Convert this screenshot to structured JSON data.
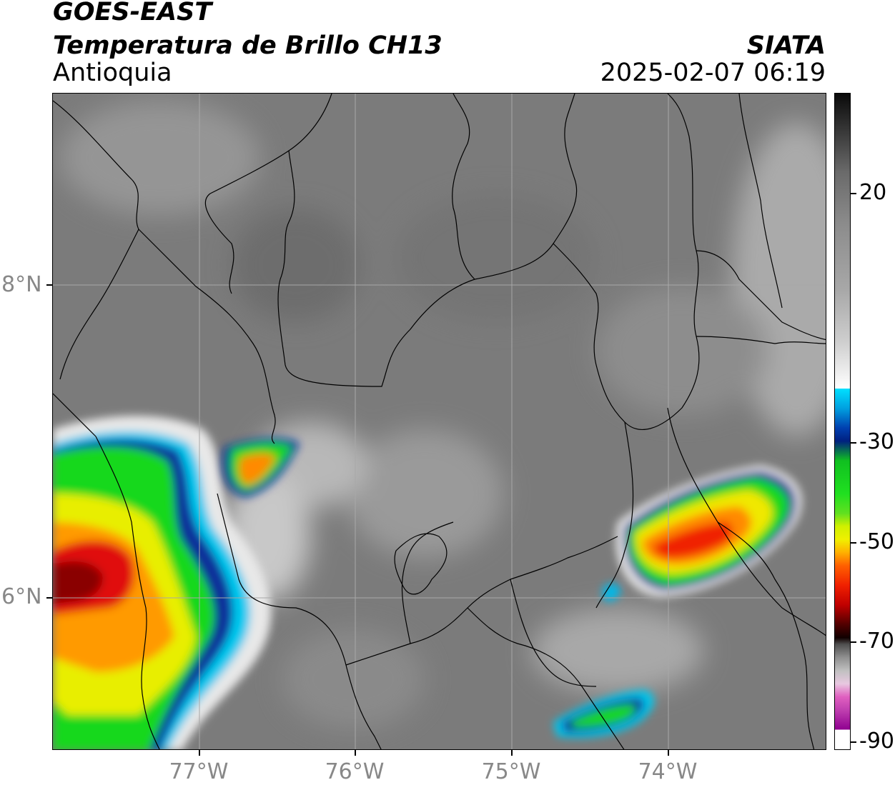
{
  "header": {
    "satellite": "GOES-EAST",
    "product": "Temperatura de Brillo CH13",
    "region": "Antioquia",
    "organization": "SIATA",
    "datetime": "2025-02-07 06:19"
  },
  "map": {
    "latitude_labels": [
      "8°N",
      "6°N"
    ],
    "longitude_labels": [
      "77°W",
      "76°W",
      "75°W",
      "74°W"
    ],
    "background_color": "#808080",
    "gridline_color": "#9a9a9a"
  },
  "colorbar": {
    "labels": [
      "20",
      "-30",
      "-50",
      "-70",
      "-90"
    ],
    "colors": {
      "warm": "#1a1a1a",
      "gray": "#909090",
      "white": "#ffffff",
      "cyan": "#00d8f0",
      "blue": "#002f8f",
      "green": "#19e019",
      "yellow": "#f0f000",
      "orange": "#ff8000",
      "red": "#e00000",
      "darkred": "#600000",
      "magenta": "#e060c0",
      "purple": "#900090"
    }
  }
}
